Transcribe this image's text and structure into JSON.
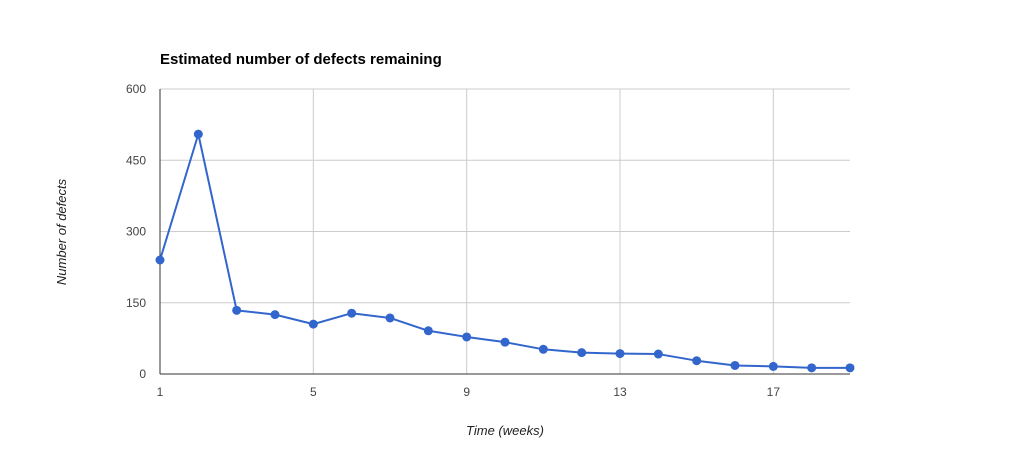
{
  "chart_data": {
    "type": "line",
    "title": "Estimated number of defects remaining",
    "xlabel": "Time (weeks)",
    "ylabel": "Number of defects",
    "xlim": [
      1,
      19
    ],
    "ylim": [
      0,
      600
    ],
    "x_ticks": [
      1,
      5,
      9,
      13,
      17
    ],
    "y_ticks": [
      0,
      150,
      300,
      450,
      600
    ],
    "grid": true,
    "legend": "none",
    "colors": {
      "series": "#3366cc",
      "grid": "#cccccc",
      "axis": "#333333",
      "tick_label": "#444444"
    },
    "series": [
      {
        "x": [
          1,
          2,
          3,
          4,
          5,
          6,
          7,
          8,
          9,
          10,
          11,
          12,
          13,
          14,
          15,
          16,
          17,
          18,
          19
        ],
        "values": [
          240,
          505,
          134,
          125,
          105,
          128,
          118,
          91,
          78,
          67,
          52,
          45,
          43,
          42,
          28,
          18,
          16,
          13,
          13
        ]
      }
    ]
  }
}
